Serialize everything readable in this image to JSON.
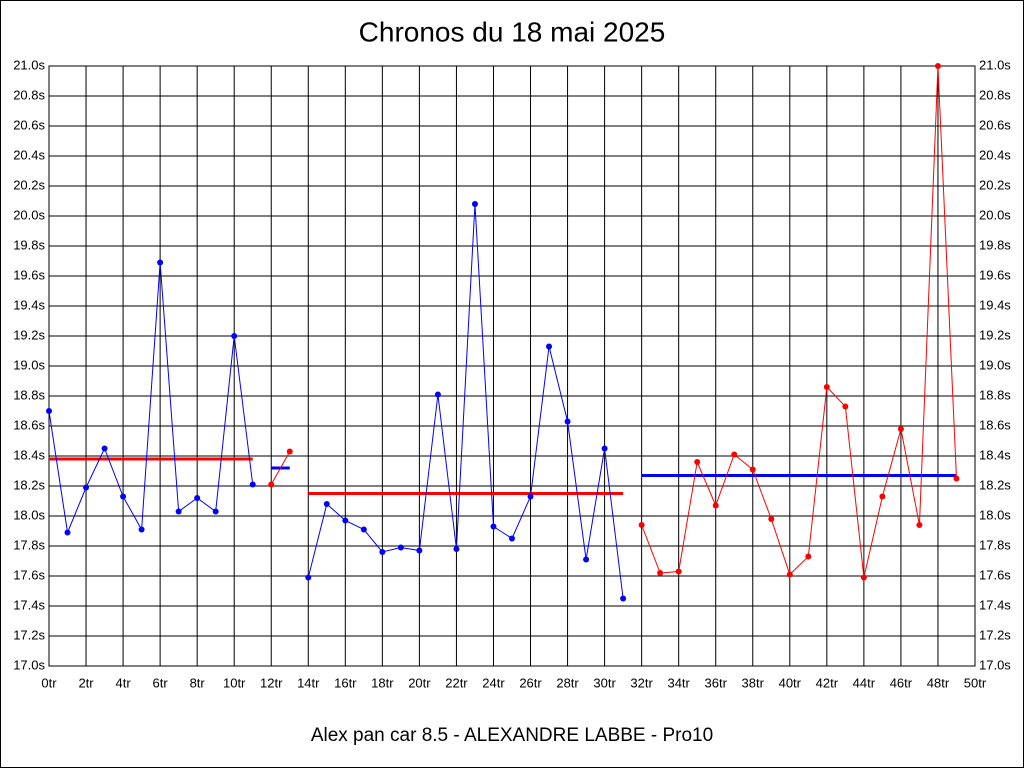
{
  "chart_data": {
    "type": "line",
    "title": "Chronos du 18 mai 2025",
    "xlabel": "Alex pan car 8.5 - ALEXANDRE LABBE - Pro10",
    "xlim": [
      0,
      50
    ],
    "ylim": [
      17.0,
      21.0
    ],
    "grid": true,
    "xticks": [
      {
        "value": 0,
        "label": "0tr"
      },
      {
        "value": 2,
        "label": "2tr"
      },
      {
        "value": 4,
        "label": "4tr"
      },
      {
        "value": 6,
        "label": "6tr"
      },
      {
        "value": 8,
        "label": "8tr"
      },
      {
        "value": 10,
        "label": "10tr"
      },
      {
        "value": 12,
        "label": "12tr"
      },
      {
        "value": 14,
        "label": "14tr"
      },
      {
        "value": 16,
        "label": "16tr"
      },
      {
        "value": 18,
        "label": "18tr"
      },
      {
        "value": 20,
        "label": "20tr"
      },
      {
        "value": 22,
        "label": "22tr"
      },
      {
        "value": 24,
        "label": "24tr"
      },
      {
        "value": 26,
        "label": "26tr"
      },
      {
        "value": 28,
        "label": "28tr"
      },
      {
        "value": 30,
        "label": "30tr"
      },
      {
        "value": 32,
        "label": "32tr"
      },
      {
        "value": 34,
        "label": "34tr"
      },
      {
        "value": 36,
        "label": "36tr"
      },
      {
        "value": 38,
        "label": "38tr"
      },
      {
        "value": 40,
        "label": "40tr"
      },
      {
        "value": 42,
        "label": "42tr"
      },
      {
        "value": 44,
        "label": "44tr"
      },
      {
        "value": 46,
        "label": "46tr"
      },
      {
        "value": 48,
        "label": "48tr"
      },
      {
        "value": 50,
        "label": "50tr"
      }
    ],
    "yticks": [
      {
        "value": 17.0,
        "label": "17.0s"
      },
      {
        "value": 17.2,
        "label": "17.2s"
      },
      {
        "value": 17.4,
        "label": "17.4s"
      },
      {
        "value": 17.6,
        "label": "17.6s"
      },
      {
        "value": 17.8,
        "label": "17.8s"
      },
      {
        "value": 18.0,
        "label": "18.0s"
      },
      {
        "value": 18.2,
        "label": "18.2s"
      },
      {
        "value": 18.4,
        "label": "18.4s"
      },
      {
        "value": 18.6,
        "label": "18.6s"
      },
      {
        "value": 18.8,
        "label": "18.8s"
      },
      {
        "value": 19.0,
        "label": "19.0s"
      },
      {
        "value": 19.2,
        "label": "19.2s"
      },
      {
        "value": 19.4,
        "label": "19.4s"
      },
      {
        "value": 19.6,
        "label": "19.6s"
      },
      {
        "value": 19.8,
        "label": "19.8s"
      },
      {
        "value": 20.0,
        "label": "20.0s"
      },
      {
        "value": 20.2,
        "label": "20.2s"
      },
      {
        "value": 20.4,
        "label": "20.4s"
      },
      {
        "value": 20.6,
        "label": "20.6s"
      },
      {
        "value": 20.8,
        "label": "20.8s"
      },
      {
        "value": 21.0,
        "label": "21.0s"
      }
    ],
    "series": [
      {
        "color": "#0000ff",
        "x": [
          0,
          1,
          2,
          3,
          4,
          5,
          6,
          7,
          8,
          9,
          10,
          11
        ],
        "values": [
          18.7,
          17.89,
          18.19,
          18.45,
          18.13,
          17.91,
          19.69,
          18.03,
          18.12,
          18.03,
          19.2,
          18.21
        ]
      },
      {
        "color": "#ff0000",
        "x": [
          12,
          13
        ],
        "values": [
          18.21,
          18.43
        ]
      },
      {
        "color": "#0000ff",
        "x": [
          14,
          15,
          16,
          17,
          18,
          19,
          20,
          21,
          22,
          23,
          24,
          25,
          26,
          27,
          28,
          29,
          30,
          31
        ],
        "values": [
          17.59,
          18.08,
          17.97,
          17.91,
          17.76,
          17.79,
          17.77,
          18.81,
          17.78,
          20.08,
          17.93,
          17.85,
          18.13,
          19.13,
          18.63,
          17.71,
          18.45,
          17.45
        ]
      },
      {
        "color": "#ff0000",
        "x": [
          32,
          33,
          34,
          35,
          36,
          37,
          38,
          39,
          40,
          41,
          42,
          43,
          44,
          45,
          46,
          47,
          48,
          49
        ],
        "values": [
          17.94,
          17.62,
          17.63,
          18.36,
          18.07,
          18.41,
          18.31,
          17.98,
          17.61,
          17.73,
          18.86,
          18.73,
          17.59,
          18.13,
          18.58,
          17.94,
          21.0,
          18.25
        ]
      }
    ],
    "averages": [
      {
        "color": "#ff0000",
        "x": [
          0,
          11
        ],
        "value": 18.38
      },
      {
        "color": "#0000ff",
        "x": [
          12,
          13
        ],
        "value": 18.32
      },
      {
        "color": "#ff0000",
        "x": [
          14,
          31
        ],
        "value": 18.15
      },
      {
        "color": "#0000ff",
        "x": [
          32,
          49
        ],
        "value": 18.27
      }
    ]
  }
}
